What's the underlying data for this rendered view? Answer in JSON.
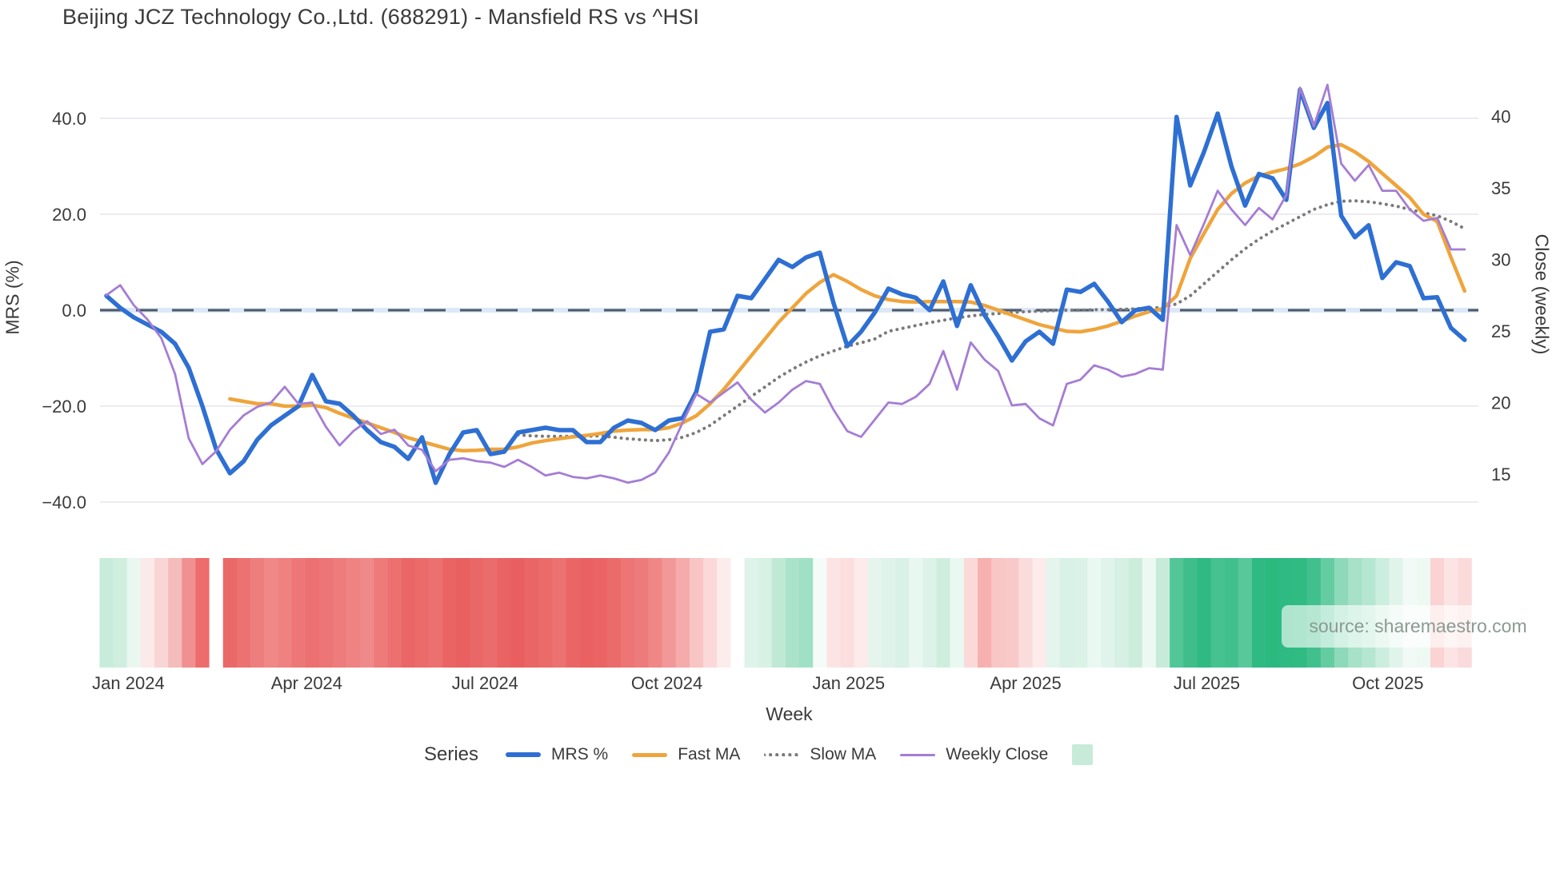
{
  "title": "Beijing JCZ Technology Co.,Ltd. (688291) - Mansfield RS vs ^HSI",
  "watermark": "source: sharemaestro.com",
  "axes": {
    "left_label": "MRS (%)",
    "right_label": "Close (weekly)",
    "x_label": "Week"
  },
  "legend": {
    "title": "Series",
    "items": [
      {
        "label": "MRS %",
        "key": "mrs"
      },
      {
        "label": "Fast MA",
        "key": "fast_ma"
      },
      {
        "label": "Slow MA",
        "key": "slow_ma"
      },
      {
        "label": "Weekly Close",
        "key": "weekly_close"
      }
    ],
    "heat_patch_color": "#c7ead9"
  },
  "chart_data": {
    "type": "line",
    "title": "Beijing JCZ Technology Co.,Ltd. (688291) - Mansfield RS vs ^HSI",
    "xlabel": "Week",
    "weeks_count": 100,
    "x_ticks": [
      {
        "label": "Jan 2024",
        "week": 1.6
      },
      {
        "label": "Apr 2024",
        "week": 14.6
      },
      {
        "label": "Jul 2024",
        "week": 27.6
      },
      {
        "label": "Oct 2024",
        "week": 40.85
      },
      {
        "label": "Jan 2025",
        "week": 54.1
      },
      {
        "label": "Apr 2025",
        "week": 67.0
      },
      {
        "label": "Jul 2025",
        "week": 80.2
      },
      {
        "label": "Oct 2025",
        "week": 93.4
      }
    ],
    "y_left": {
      "label": "MRS (%)",
      "values": [
        40,
        20,
        0,
        -20,
        -40
      ],
      "tick_labels": [
        "40.0",
        "20.0",
        "0.0",
        "−20.0",
        "−40.0"
      ],
      "range": [
        -45,
        50
      ],
      "grid": true,
      "zero_line_dashed": true
    },
    "y_right": {
      "label": "Close (weekly)",
      "values": [
        40,
        35,
        30,
        25,
        20,
        15
      ],
      "tick_labels": [
        "40",
        "35",
        "30",
        "25",
        "20",
        "15"
      ],
      "range": [
        11,
        43
      ]
    },
    "series": [
      {
        "key": "mrs",
        "name": "MRS %",
        "axis": "left",
        "color": "#2e6fd3",
        "style": "solid",
        "width": 5.5,
        "values": [
          3,
          0.5,
          -1.5,
          -3,
          -4.5,
          -7,
          -12,
          -20,
          -29,
          -34,
          -31.5,
          -27,
          -24,
          -22,
          -20,
          -13.5,
          -19,
          -19.5,
          -22,
          -25,
          -27.5,
          -28.5,
          -31,
          -26.5,
          -36,
          -30,
          -25.5,
          -25,
          -30,
          -29.5,
          -25.5,
          -25,
          -24.5,
          -25,
          -25,
          -27.5,
          -27.5,
          -24.5,
          -23,
          -23.5,
          -25,
          -23,
          -22.5,
          -17,
          -4.5,
          -4,
          3,
          2.5,
          6.5,
          10.5,
          9,
          11,
          12,
          1.5,
          -7.5,
          -4.5,
          -0.5,
          4.5,
          3.3,
          2.6,
          0,
          6,
          -3.3,
          5.2,
          -1,
          -5.5,
          -10.5,
          -6.5,
          -4.5,
          -7,
          4.3,
          3.8,
          5.5,
          1.8,
          -2.5,
          0,
          0.5,
          -2,
          40.3,
          26,
          33,
          41,
          30,
          21.8,
          28.4,
          27.5,
          23,
          46,
          38,
          43.2,
          19.7,
          15.2,
          17.7,
          6.7,
          10,
          9.2,
          2.5,
          2.7,
          -3.7,
          -6.2
        ]
      },
      {
        "key": "fast_ma",
        "name": "Fast MA",
        "axis": "left",
        "color": "#efa43b",
        "style": "solid",
        "width": 4.5,
        "values": [
          null,
          null,
          null,
          null,
          null,
          null,
          null,
          null,
          null,
          -18.5,
          -19,
          -19.5,
          -19.5,
          -20,
          -20,
          -19.8,
          -20.3,
          -21.5,
          -22.5,
          -23.5,
          -24.5,
          -25.5,
          -26.6,
          -27.4,
          -28.2,
          -29,
          -29.3,
          -29.2,
          -29,
          -29,
          -28.5,
          -27.7,
          -27.2,
          -26.8,
          -26.4,
          -26.1,
          -25.7,
          -25.2,
          -25,
          -24.9,
          -24.9,
          -24.5,
          -23.5,
          -22,
          -19.5,
          -16.5,
          -13,
          -9.5,
          -6,
          -2.5,
          0.5,
          3.5,
          5.8,
          7.4,
          6,
          4.3,
          3,
          2.2,
          1.8,
          1.7,
          1.8,
          1.8,
          1.8,
          1.7,
          1,
          0,
          -1,
          -2,
          -3,
          -3.7,
          -4.4,
          -4.5,
          -4,
          -3.3,
          -2.3,
          -1.2,
          -0.3,
          0.3,
          3,
          10.8,
          16,
          21,
          24.3,
          26.5,
          28,
          28.8,
          29.5,
          30.5,
          32,
          34,
          34.5,
          33,
          31,
          28.5,
          26,
          23.5,
          20,
          18.5,
          11,
          4
        ]
      },
      {
        "key": "slow_ma",
        "name": "Slow MA",
        "axis": "left",
        "color": "#7a7a7a",
        "style": "dotted",
        "width": 4,
        "values": [
          null,
          null,
          null,
          null,
          null,
          null,
          null,
          null,
          null,
          null,
          null,
          null,
          null,
          null,
          null,
          null,
          null,
          null,
          null,
          null,
          null,
          null,
          null,
          null,
          null,
          null,
          null,
          null,
          null,
          null,
          -26,
          -26.2,
          -26.3,
          -26.3,
          -26.3,
          -26.3,
          -26.2,
          -26.5,
          -26.8,
          -27,
          -27.2,
          -27,
          -26.5,
          -25.5,
          -24,
          -22,
          -20,
          -18,
          -16,
          -14,
          -12.3,
          -10.8,
          -9.5,
          -8.5,
          -7.5,
          -6.8,
          -6,
          -4.4,
          -3.8,
          -3.2,
          -2.6,
          -2.1,
          -1.6,
          -1.2,
          -0.9,
          -0.7,
          -0.5,
          -0.3,
          -0.2,
          -0.1,
          0,
          0,
          0.1,
          0.1,
          0.2,
          0.3,
          0.4,
          0.6,
          1.3,
          3,
          5.5,
          8,
          10.5,
          12.8,
          14.8,
          16.5,
          18,
          19.5,
          21,
          22,
          22.7,
          22.8,
          22.6,
          22.2,
          21.7,
          21,
          20.3,
          19.7,
          18.5,
          17
        ]
      },
      {
        "key": "weekly_close",
        "name": "Weekly Close",
        "axis": "right",
        "color": "#a57dd4",
        "style": "solid",
        "width": 2.8,
        "values": [
          27.5,
          28.2,
          26.8,
          25.8,
          24.5,
          22,
          17.5,
          15.7,
          16.6,
          18.1,
          19.1,
          19.7,
          20,
          21.1,
          19.9,
          20,
          18.3,
          17,
          18,
          18.7,
          17.8,
          18.1,
          17,
          16.7,
          15.2,
          16,
          16.1,
          15.9,
          15.8,
          15.5,
          16,
          15.5,
          14.9,
          15.1,
          14.8,
          14.7,
          14.9,
          14.7,
          14.4,
          14.6,
          15.1,
          16.5,
          18.6,
          20.6,
          20,
          20.7,
          21.4,
          20.2,
          19.3,
          20,
          20.9,
          21.5,
          21.3,
          19.5,
          18,
          17.6,
          18.8,
          20,
          19.9,
          20.4,
          21.3,
          23.6,
          20.9,
          24.2,
          23,
          22.2,
          19.8,
          19.9,
          18.9,
          18.4,
          21.3,
          21.6,
          22.6,
          22.3,
          21.8,
          22,
          22.4,
          22.3,
          32.4,
          30.3,
          32.5,
          34.8,
          33.5,
          32.4,
          33.6,
          32.8,
          34.5,
          42,
          39.3,
          42.2,
          36.7,
          35.5,
          36.6,
          34.8,
          34.8,
          33.5,
          32.7,
          32.9,
          30.7,
          30.7
        ]
      }
    ],
    "heatmap": {
      "description": "weekly return color strip below plot",
      "colors": [
        "#c8ecdb",
        "#cfeede",
        "#e9f7f0",
        "#fce9e9",
        "#f9d5d5",
        "#f5bcbc",
        "#f19090",
        "#ed6c6c",
        "#ffffff",
        "#ea6868",
        "#ec7272",
        "#ee7e7e",
        "#f08888",
        "#ef8181",
        "#ed7777",
        "#ec7070",
        "#ed7575",
        "#ee7c7c",
        "#ef8383",
        "#f08a8a",
        "#ee7a7a",
        "#ec7070",
        "#ea6666",
        "#eb6b6b",
        "#ec7070",
        "#ea6464",
        "#e96060",
        "#ea6767",
        "#eb6c6c",
        "#ea6363",
        "#e95f5f",
        "#ea6565",
        "#eb6a6a",
        "#ec7171",
        "#ea6666",
        "#e96161",
        "#ea6464",
        "#eb6b6b",
        "#ed7575",
        "#ee7b7b",
        "#f08787",
        "#f29898",
        "#f5abab",
        "#f8c4c4",
        "#fbd9d9",
        "#fdecec",
        "#ffffff",
        "#def3e9",
        "#d8f1e5",
        "#c0e9d5",
        "#aae3c9",
        "#a0e0c4",
        "#f4fbf8",
        "#fde4e4",
        "#fcdede",
        "#fdeaea",
        "#e5f5ee",
        "#dff3ea",
        "#d9f1e6",
        "#e9f7f1",
        "#ddf2e8",
        "#d0eede",
        "#eaf8f2",
        "#fbd9d9",
        "#f6b0b0",
        "#f9c6c6",
        "#f9c9c9",
        "#fadcdc",
        "#fdebeb",
        "#e4f5ed",
        "#d9f1e6",
        "#dbf2e7",
        "#eaf8f2",
        "#e0f4eb",
        "#d6f0e3",
        "#cdeddc",
        "#ecf9f3",
        "#c6ebd8",
        "#52c697",
        "#3fbe8b",
        "#2eba82",
        "#46c290",
        "#41c08d",
        "#58c89b",
        "#2eba82",
        "#2bb980",
        "#2eba82",
        "#30bb83",
        "#41c08d",
        "#65cca2",
        "#8ed9ba",
        "#a6e1c8",
        "#b5e6d1",
        "#cceede",
        "#e1f4ec",
        "#f1faf6",
        "#eef9f4",
        "#fbd3d3",
        "#fce4e4",
        "#fadada"
      ]
    },
    "colors": {
      "mrs": "#2e6fd3",
      "fast_ma": "#efa43b",
      "slow_ma": "#7a7a7a",
      "weekly_close": "#a57dd4",
      "zero_dash": "#4d5766",
      "zero_band": "#dce8f6",
      "grid": "#ebebf2"
    },
    "legend_position": "bottom"
  }
}
